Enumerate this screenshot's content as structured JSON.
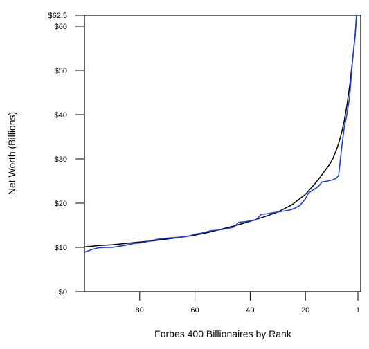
{
  "chart_data": {
    "type": "line",
    "title": "",
    "xlabel": "Forbes 400 Billionaires by Rank",
    "ylabel": "Net Worth (Billions)",
    "xlim": [
      100,
      0
    ],
    "ylim": [
      0,
      62.5
    ],
    "x_ticks": [
      {
        "value": 80,
        "label": "80"
      },
      {
        "value": 60,
        "label": "60"
      },
      {
        "value": 40,
        "label": "40"
      },
      {
        "value": 20,
        "label": "20"
      },
      {
        "value": 1,
        "label": "1"
      }
    ],
    "y_ticks": [
      {
        "value": 0,
        "label": "$0"
      },
      {
        "value": 10,
        "label": "$10"
      },
      {
        "value": 20,
        "label": "$20"
      },
      {
        "value": 30,
        "label": "$30"
      },
      {
        "value": 40,
        "label": "$40"
      },
      {
        "value": 50,
        "label": "$50"
      },
      {
        "value": 60,
        "label": "$60"
      },
      {
        "value": 62.5,
        "label": "$62.5"
      }
    ],
    "grid": false,
    "series": [
      {
        "color": "#1a3fd6",
        "x": [
          100,
          97,
          95,
          92,
          90,
          88,
          85,
          82,
          80,
          78,
          76,
          74,
          72,
          70,
          68,
          66,
          64,
          62,
          60,
          58,
          56,
          54,
          52,
          50,
          48,
          46,
          45,
          44,
          42,
          40,
          38,
          37,
          36,
          34,
          32,
          30,
          28,
          26,
          24,
          22,
          20,
          19,
          18,
          16,
          15,
          14,
          12,
          10,
          9,
          8,
          7,
          6,
          5,
          4,
          3,
          2,
          1.5
        ],
        "y": [
          8.9,
          9.6,
          9.9,
          10.0,
          10.0,
          10.2,
          10.5,
          10.9,
          11.0,
          11.2,
          11.5,
          11.8,
          12.0,
          12.1,
          12.2,
          12.3,
          12.4,
          12.6,
          13.0,
          13.2,
          13.5,
          13.8,
          13.9,
          14.1,
          14.3,
          14.6,
          15.2,
          15.7,
          15.8,
          16.0,
          16.2,
          16.8,
          17.5,
          17.6,
          17.8,
          18.0,
          18.2,
          18.4,
          18.8,
          19.5,
          21.0,
          22.2,
          22.7,
          23.5,
          24.0,
          24.8,
          25.0,
          25.3,
          25.6,
          26.2,
          32.0,
          37.0,
          40.0,
          44.0,
          52.0,
          58.0,
          62.5
        ]
      },
      {
        "color": "#000000",
        "x": [
          100,
          95,
          90,
          85,
          80,
          75,
          70,
          65,
          60,
          55,
          50,
          45,
          40,
          35,
          30,
          25,
          20,
          17,
          15,
          13,
          11,
          10,
          9,
          8,
          7,
          6,
          5,
          4,
          3,
          2,
          1.5
        ],
        "y": [
          10.1,
          10.4,
          10.6,
          10.9,
          11.2,
          11.5,
          11.9,
          12.3,
          12.8,
          13.4,
          14.2,
          15.0,
          15.9,
          16.9,
          18.0,
          19.6,
          22.0,
          24.1,
          25.6,
          27.3,
          29.0,
          30.2,
          31.7,
          33.5,
          35.7,
          38.5,
          42.0,
          46.5,
          52.0,
          58.0,
          62.5
        ]
      }
    ]
  }
}
